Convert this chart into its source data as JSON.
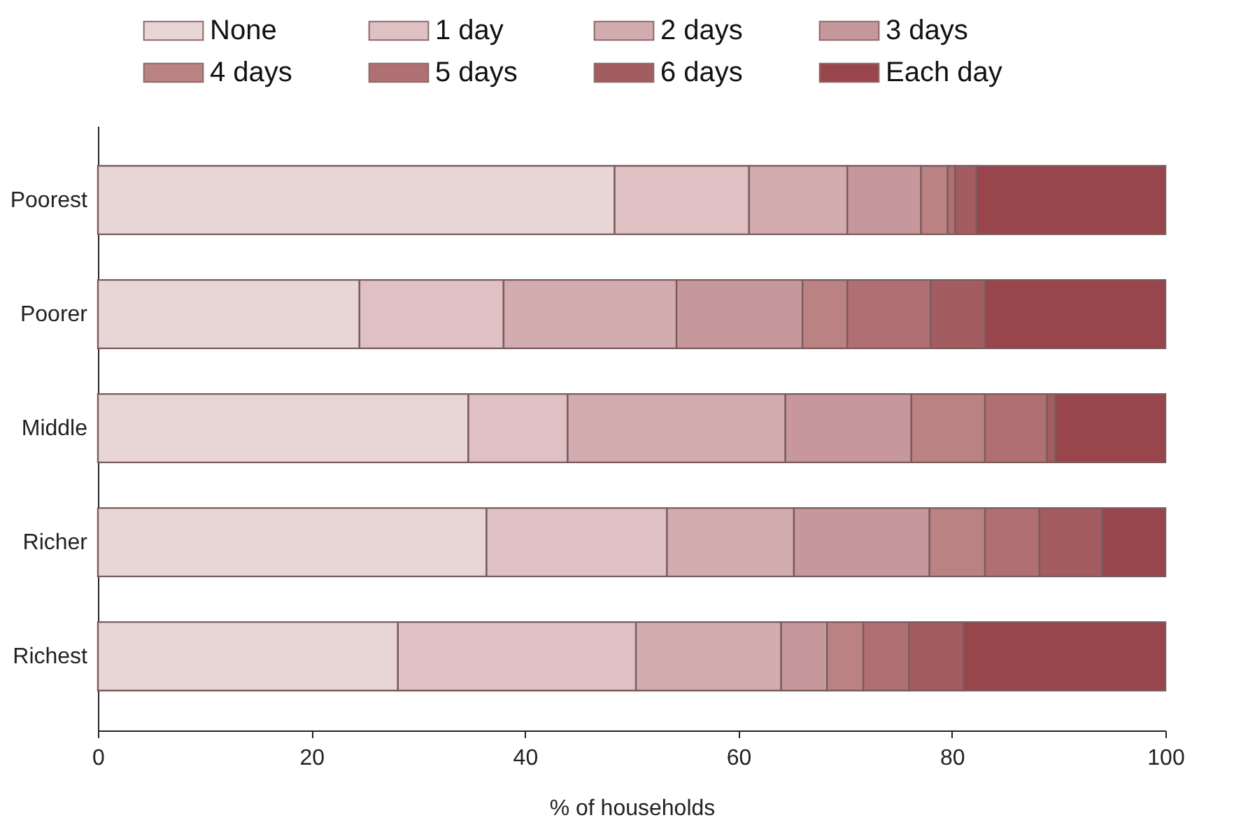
{
  "chart_data": {
    "type": "bar",
    "orientation": "horizontal",
    "stacked": true,
    "categories": [
      "Poorest",
      "Poorer",
      "Middle",
      "Richer",
      "Richest"
    ],
    "xlabel": "% of households",
    "xlim": [
      0,
      100
    ],
    "xticks": [
      0,
      20,
      40,
      60,
      80,
      100
    ],
    "grid": false,
    "legend": "top",
    "series": [
      {
        "name": "None",
        "color": "#e8d6d7",
        "values": [
          48.4,
          24.5,
          34.7,
          36.4,
          28.1
        ]
      },
      {
        "name": "1 day",
        "color": "#dfc0c3",
        "values": [
          12.6,
          13.5,
          9.3,
          16.9,
          22.3
        ]
      },
      {
        "name": "2 days",
        "color": "#d3acb0",
        "values": [
          9.2,
          16.2,
          20.4,
          11.9,
          13.6
        ]
      },
      {
        "name": "3 days",
        "color": "#c7989b",
        "values": [
          6.9,
          11.8,
          11.8,
          12.7,
          4.3
        ]
      },
      {
        "name": "4 days",
        "color": "#ba8283",
        "values": [
          2.5,
          4.2,
          6.9,
          5.2,
          3.4
        ]
      },
      {
        "name": "5 days",
        "color": "#b07073",
        "values": [
          0.7,
          7.8,
          5.8,
          5.1,
          4.3
        ]
      },
      {
        "name": "6 days",
        "color": "#a35c60",
        "values": [
          2.0,
          5.1,
          0.8,
          5.9,
          5.1
        ]
      },
      {
        "name": "Each day",
        "color": "#98464b",
        "values": [
          17.7,
          16.9,
          10.3,
          5.9,
          18.9
        ]
      }
    ]
  }
}
